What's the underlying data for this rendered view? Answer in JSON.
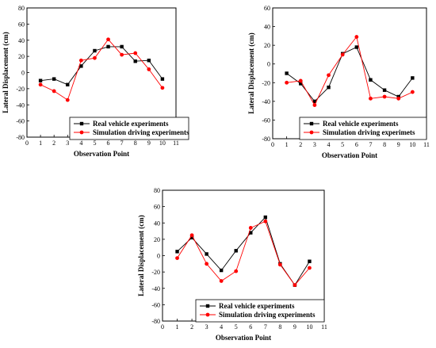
{
  "chart_data": [
    {
      "type": "line",
      "xlabel": "Observation Point",
      "ylabel": "Lateral Displacement (cm)",
      "xlim": [
        0,
        11
      ],
      "ylim": [
        -80,
        80
      ],
      "xticks": [
        0,
        1,
        2,
        3,
        4,
        5,
        6,
        7,
        8,
        9,
        10,
        11
      ],
      "yticks": [
        -80,
        -60,
        -40,
        -20,
        0,
        20,
        40,
        60,
        80
      ],
      "legend_position": "bottom-right",
      "x": [
        1,
        2,
        3,
        4,
        5,
        6,
        7,
        8,
        9,
        10
      ],
      "series": [
        {
          "name": "Real vehicle experiments",
          "color": "#000000",
          "marker": "square",
          "values": [
            -10,
            -8,
            -15,
            8,
            27,
            32,
            32,
            14,
            15,
            -8
          ]
        },
        {
          "name": "Simulation driving experiments",
          "color": "#ff0000",
          "marker": "circle",
          "values": [
            -15,
            -23,
            -34,
            15,
            18,
            41,
            22,
            24,
            4,
            -19
          ]
        }
      ]
    },
    {
      "type": "line",
      "xlabel": "Observation Point",
      "ylabel": "Lateral Displacement (cm)",
      "xlim": [
        0,
        11
      ],
      "ylim": [
        -80,
        60
      ],
      "xticks": [
        0,
        1,
        2,
        3,
        4,
        5,
        6,
        7,
        8,
        9,
        10,
        11
      ],
      "yticks": [
        -80,
        -60,
        -40,
        -20,
        0,
        20,
        40,
        60
      ],
      "legend_position": "bottom-right",
      "x": [
        1,
        2,
        3,
        4,
        5,
        6,
        7,
        8,
        9,
        10
      ],
      "series": [
        {
          "name": "Real vehicle experiments",
          "color": "#000000",
          "marker": "square",
          "values": [
            -10,
            -21,
            -40,
            -25,
            11,
            18,
            -17,
            -28,
            -35,
            -15
          ]
        },
        {
          "name": "Simulation driving experimets",
          "color": "#ff0000",
          "marker": "circle",
          "values": [
            -20,
            -18,
            -44,
            -12,
            10,
            29,
            -37,
            -35,
            -37,
            -30
          ]
        }
      ]
    },
    {
      "type": "line",
      "xlabel": "Observation Point",
      "ylabel": "Lateral Displacement (cm)",
      "xlim": [
        0,
        11
      ],
      "ylim": [
        -80,
        80
      ],
      "xticks": [
        0,
        1,
        2,
        3,
        4,
        5,
        6,
        7,
        8,
        9,
        10,
        11
      ],
      "yticks": [
        -80,
        -60,
        -40,
        -20,
        0,
        20,
        40,
        60,
        80
      ],
      "legend_position": "bottom-right",
      "x": [
        1,
        2,
        3,
        4,
        5,
        6,
        7,
        8,
        9,
        10
      ],
      "series": [
        {
          "name": "Real vehicle experiments",
          "color": "#000000",
          "marker": "square",
          "values": [
            5,
            22,
            2,
            -18,
            6,
            28,
            47,
            -10,
            -36,
            -7
          ]
        },
        {
          "name": "Simulation driving experiments",
          "color": "#ff0000",
          "marker": "circle",
          "values": [
            -3,
            25,
            -10,
            -31,
            -19,
            34,
            42,
            -11,
            -36,
            -15
          ]
        }
      ]
    }
  ]
}
